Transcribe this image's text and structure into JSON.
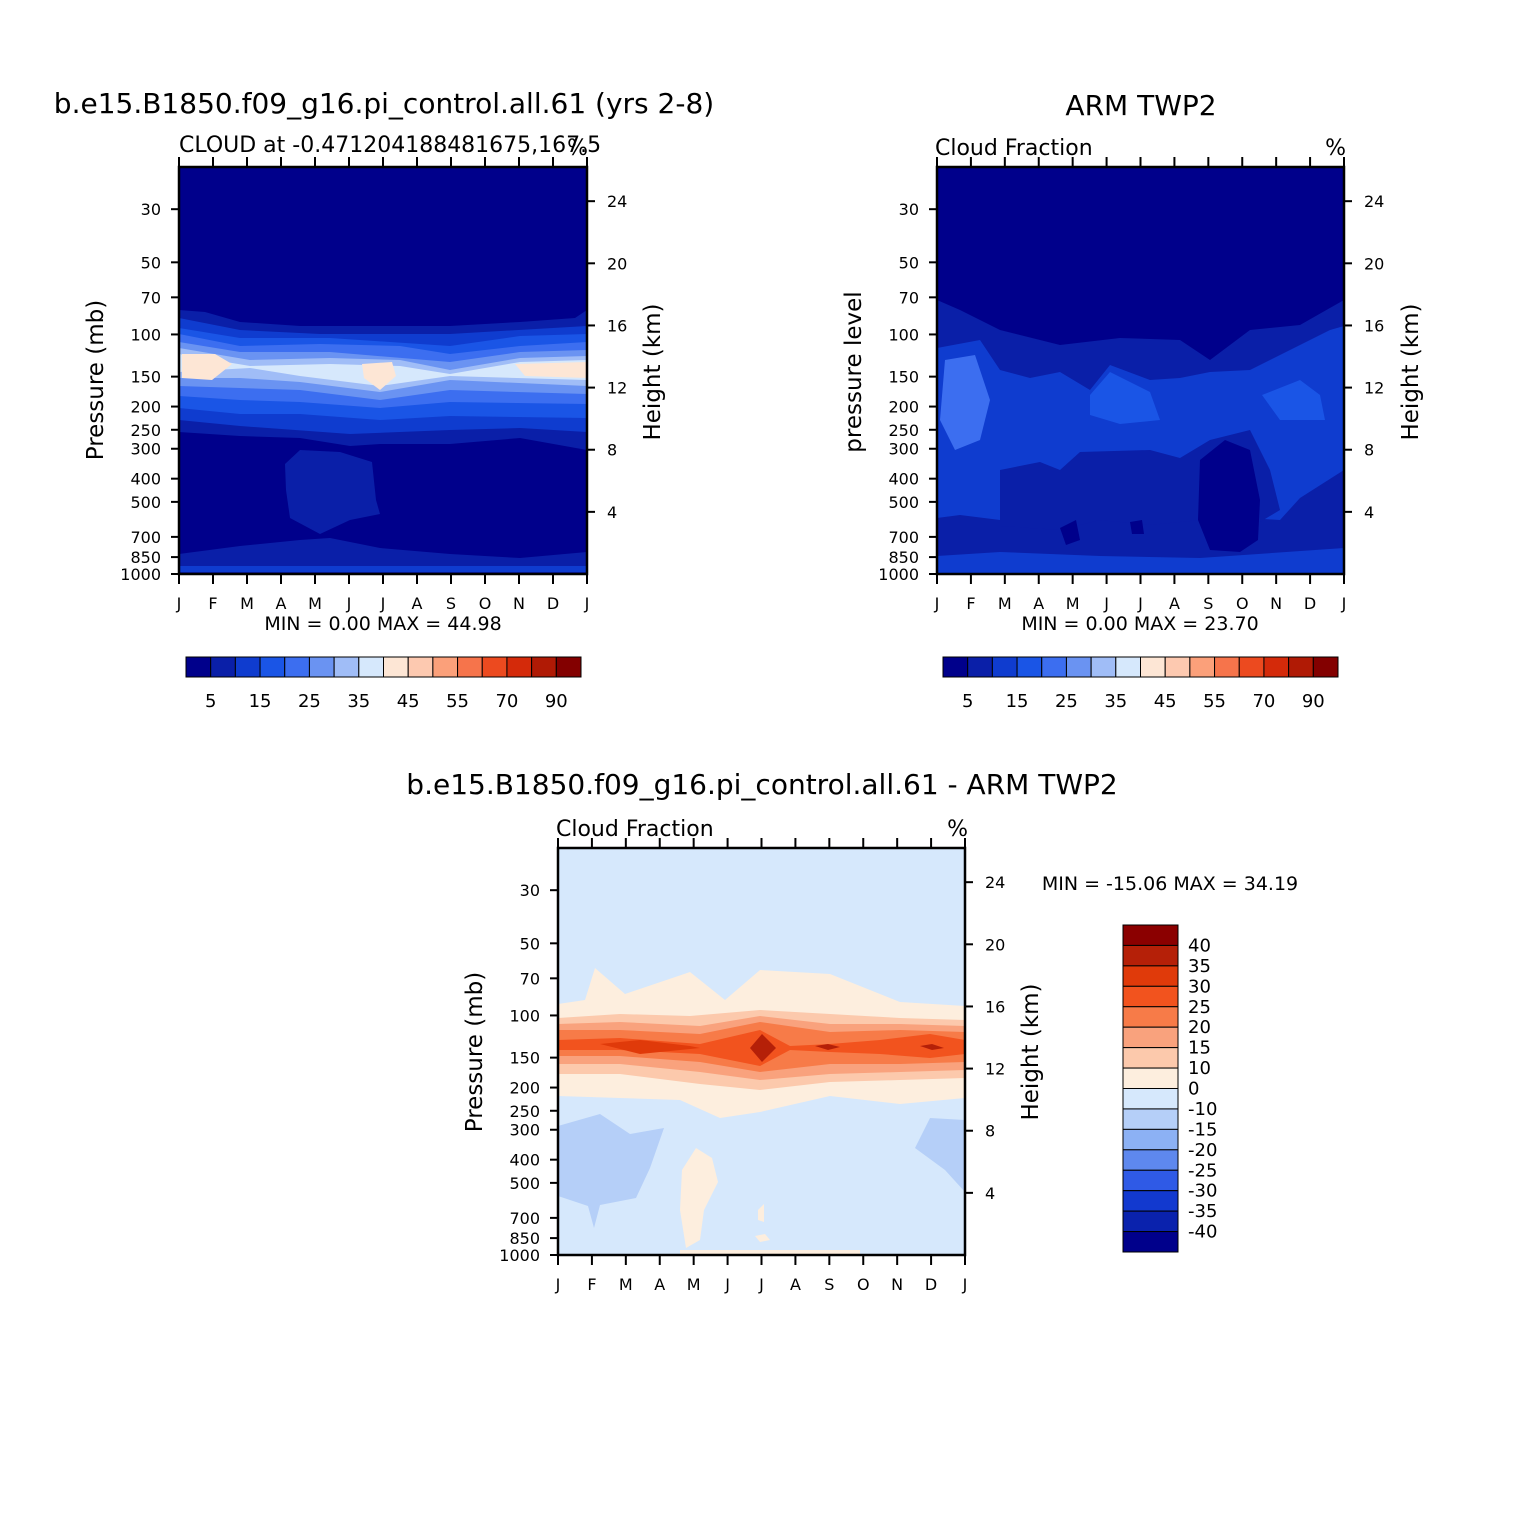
{
  "chart_data": [
    {
      "type": "heatmap",
      "title": "b.e15.B1850.f09_g16.pi_control.all.61 (yrs 2-8)",
      "subtitle": "CLOUD at -0.471204188481675,167.5",
      "units": "%",
      "ylabel": "Pressure (mb)",
      "ylabel_right": "Height (km)",
      "x_ticks": [
        "J",
        "F",
        "M",
        "A",
        "M",
        "J",
        "J",
        "A",
        "S",
        "O",
        "N",
        "D",
        "J"
      ],
      "y_ticks": [
        "30",
        "50",
        "70",
        "100",
        "150",
        "200",
        "250",
        "300",
        "400",
        "500",
        "700",
        "850",
        "1000"
      ],
      "y_values": [
        30,
        50,
        70,
        100,
        150,
        200,
        250,
        300,
        400,
        500,
        700,
        850,
        1000
      ],
      "height_ticks": [
        "24",
        "20",
        "16",
        "12",
        "8",
        "4"
      ],
      "minmax": "MIN =    0.00  MAX =   44.98",
      "colorbar_labels": [
        "5",
        "15",
        "25",
        "35",
        "45",
        "55",
        "70",
        "90"
      ],
      "colorbar_colors": [
        "#00008b",
        "#0a1fa8",
        "#0f3ccf",
        "#1a55e6",
        "#3c6ef0",
        "#6a93f2",
        "#a0bdf7",
        "#d6e8fc",
        "#fde6d5",
        "#fdc9b0",
        "#fba07a",
        "#f6744b",
        "#ec4a1f",
        "#d42a0a",
        "#b01a05",
        "#830000"
      ],
      "level_values": [
        2.5,
        5,
        10,
        15,
        20,
        25,
        30,
        35,
        40,
        45,
        50,
        55,
        60,
        70,
        80,
        90
      ]
    },
    {
      "type": "heatmap",
      "title": "ARM TWP2",
      "subtitle": "Cloud Fraction",
      "units": "%",
      "ylabel": "pressure level",
      "ylabel_right": "Height (km)",
      "x_ticks": [
        "J",
        "F",
        "M",
        "A",
        "M",
        "J",
        "J",
        "A",
        "S",
        "O",
        "N",
        "D",
        "J"
      ],
      "y_ticks": [
        "30",
        "50",
        "70",
        "100",
        "150",
        "200",
        "250",
        "300",
        "400",
        "500",
        "700",
        "850",
        "1000"
      ],
      "y_values": [
        30,
        50,
        70,
        100,
        150,
        200,
        250,
        300,
        400,
        500,
        700,
        850,
        1000
      ],
      "height_ticks": [
        "24",
        "20",
        "16",
        "12",
        "8",
        "4"
      ],
      "minmax": "MIN =    0.00  MAX =   23.70",
      "colorbar_labels": [
        "5",
        "15",
        "25",
        "35",
        "45",
        "55",
        "70",
        "90"
      ]
    },
    {
      "type": "heatmap",
      "title": "b.e15.B1850.f09_g16.pi_control.all.61 - ARM TWP2",
      "subtitle": "Cloud Fraction",
      "units": "%",
      "ylabel": "Pressure (mb)",
      "ylabel_right": "Height (km)",
      "x_ticks": [
        "J",
        "F",
        "M",
        "A",
        "M",
        "J",
        "J",
        "A",
        "S",
        "O",
        "N",
        "D",
        "J"
      ],
      "y_ticks": [
        "30",
        "50",
        "70",
        "100",
        "150",
        "200",
        "250",
        "300",
        "400",
        "500",
        "700",
        "850",
        "1000"
      ],
      "y_values": [
        30,
        50,
        70,
        100,
        150,
        200,
        250,
        300,
        400,
        500,
        700,
        850,
        1000
      ],
      "height_ticks": [
        "24",
        "20",
        "16",
        "12",
        "8",
        "4"
      ],
      "minmax": "MIN = -15.06  MAX =   34.19",
      "colorbar_labels": [
        "40",
        "35",
        "30",
        "25",
        "20",
        "15",
        "10",
        "0",
        "-10",
        "-15",
        "-20",
        "-25",
        "-30",
        "-35",
        "-40"
      ],
      "colorbar_colors": [
        "#8b0000",
        "#b52008",
        "#e03a0a",
        "#f2531e",
        "#f77b48",
        "#f9a27d",
        "#fcc9ac",
        "#fdeede",
        "#d6e8fc",
        "#b5cff8",
        "#8cb1f4",
        "#5e88ee",
        "#2f5ae6",
        "#1239cf",
        "#0a22ad",
        "#00008b"
      ]
    }
  ]
}
